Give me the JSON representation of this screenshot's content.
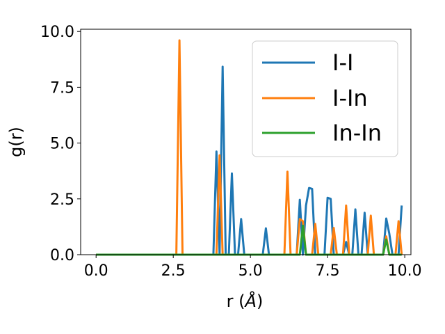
{
  "chart_data": {
    "type": "line",
    "title": "",
    "xlabel": "r (",
    "xlabel_unit": "Å",
    "xlabel_close": ")",
    "ylabel": "g(r)",
    "xlim": [
      -0.5,
      10.2
    ],
    "ylim": [
      0,
      10.1
    ],
    "xticks": [
      0.0,
      2.5,
      5.0,
      7.5,
      10.0
    ],
    "xtick_labels": [
      "0.0",
      "2.5",
      "5.0",
      "7.5",
      "10.0"
    ],
    "yticks": [
      0.0,
      2.5,
      5.0,
      7.5,
      10.0
    ],
    "ytick_labels": [
      "0.0",
      "2.5",
      "5.0",
      "7.5",
      "10.0"
    ],
    "grid": false,
    "legend_position": "top-right",
    "series": [
      {
        "name": "I-I",
        "color": "#1f77b4",
        "x": [
          0.0,
          3.8,
          3.9,
          4.0,
          4.1,
          4.2,
          4.3,
          4.4,
          4.5,
          4.6,
          4.7,
          4.8,
          5.4,
          5.5,
          5.6,
          6.5,
          6.6,
          6.7,
          6.8,
          6.9,
          7.0,
          7.1,
          7.4,
          7.5,
          7.6,
          7.7,
          8.0,
          8.1,
          8.2,
          8.3,
          8.4,
          8.5,
          8.6,
          8.7,
          8.8,
          9.3,
          9.4,
          9.5,
          9.6,
          9.8,
          9.9
        ],
        "y": [
          0.0,
          0.0,
          4.62,
          0.0,
          8.42,
          0.0,
          0.0,
          3.64,
          0.0,
          0.0,
          1.6,
          0.0,
          0.0,
          1.18,
          0.0,
          0.0,
          2.46,
          0.0,
          2.2,
          2.99,
          2.95,
          0.0,
          0.0,
          2.55,
          2.5,
          0.0,
          0.0,
          0.57,
          0.0,
          0.0,
          2.03,
          0.0,
          0.0,
          1.88,
          0.0,
          0.0,
          1.62,
          0.94,
          0.0,
          0.0,
          2.2
        ]
      },
      {
        "name": "I-In",
        "color": "#ff7f0e",
        "x": [
          0.0,
          2.6,
          2.7,
          2.8,
          3.9,
          4.0,
          4.1,
          6.1,
          6.2,
          6.3,
          6.5,
          6.6,
          6.7,
          6.8,
          7.0,
          7.1,
          7.2,
          7.6,
          7.7,
          7.8,
          8.0,
          8.1,
          8.2,
          8.3,
          8.8,
          8.9,
          9.0,
          9.3,
          9.4,
          9.5,
          9.7,
          9.8,
          9.9
        ],
        "y": [
          0.0,
          0.0,
          9.6,
          0.0,
          0.0,
          4.45,
          0.0,
          0.0,
          3.72,
          0.0,
          0.0,
          1.6,
          1.5,
          0.0,
          0.0,
          1.38,
          0.0,
          0.0,
          1.2,
          0.0,
          0.0,
          2.2,
          0.0,
          0.0,
          0.0,
          1.75,
          0.0,
          0.0,
          0.82,
          0.0,
          0.0,
          1.5,
          0.0
        ]
      },
      {
        "name": "In-In",
        "color": "#2ca02c",
        "x": [
          0.0,
          6.6,
          6.7,
          6.8,
          9.3,
          9.4,
          9.5,
          9.9
        ],
        "y": [
          0.0,
          0.0,
          1.3,
          0.0,
          0.0,
          0.68,
          0.0,
          0.0
        ]
      }
    ]
  }
}
